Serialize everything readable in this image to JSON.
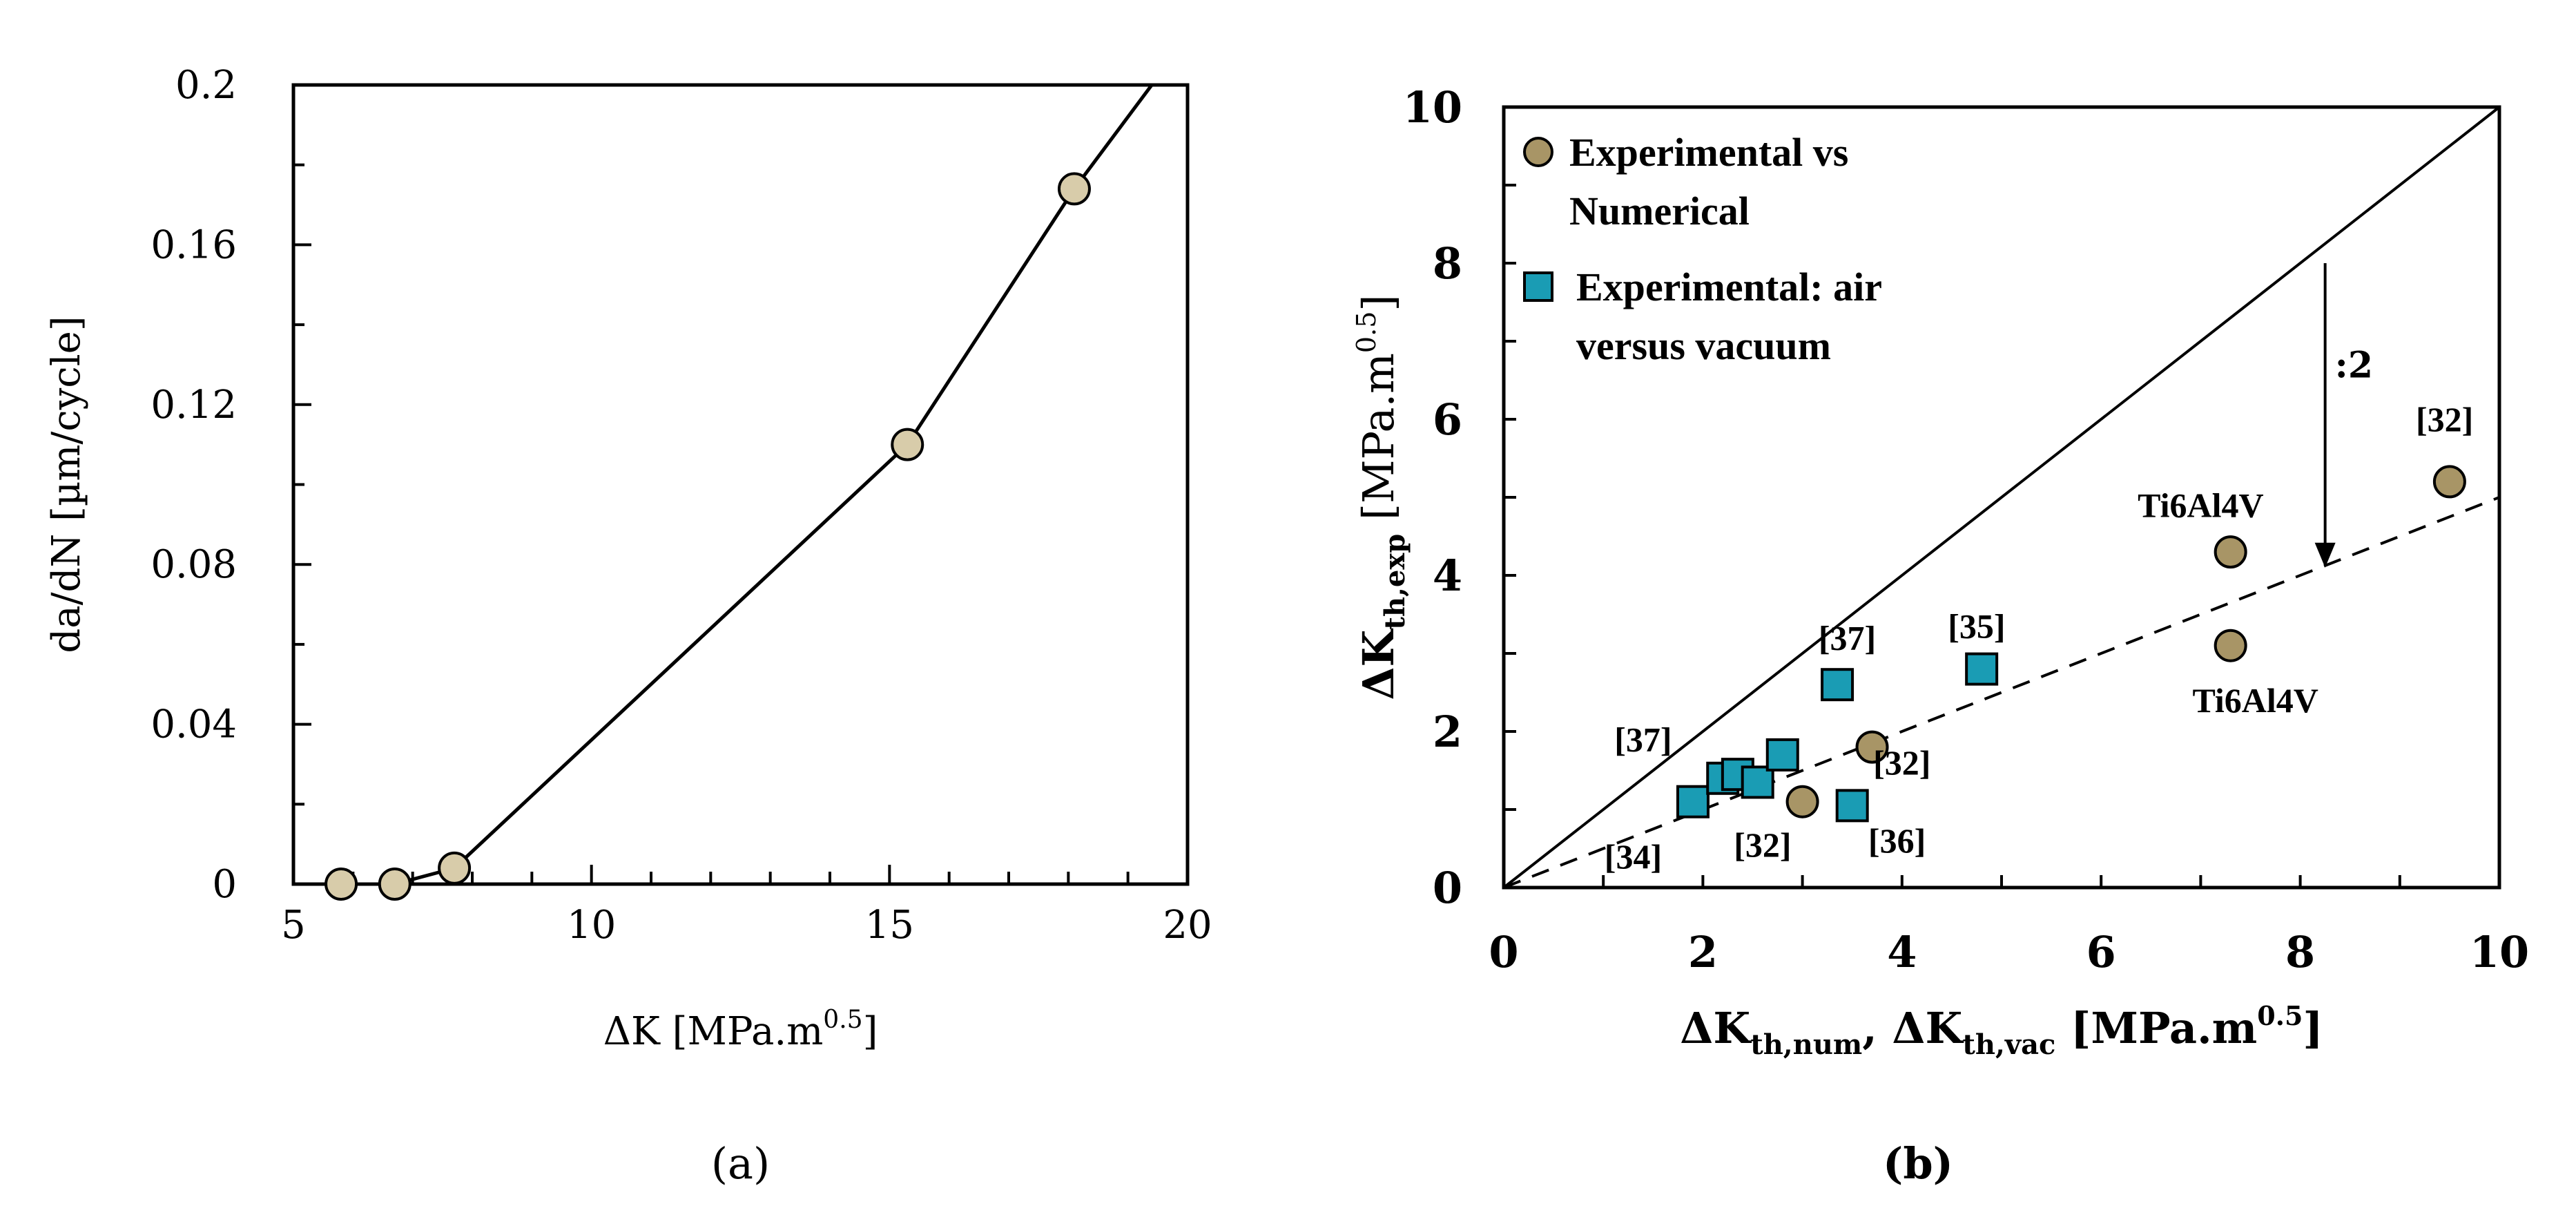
{
  "chart_data": [
    {
      "panel": "a",
      "type": "line",
      "caption": "(a)",
      "xlabel": {
        "prefix": "ΔK [MPa.m",
        "sup": "0.5",
        "suffix": "]"
      },
      "ylabel": "da/dN [µm/cycle]",
      "xlim": [
        5,
        20
      ],
      "ylim": [
        0,
        0.2
      ],
      "xticks": [
        "5",
        "10",
        "15",
        "20"
      ],
      "yticks": [
        "0",
        "0.04",
        "0.08",
        "0.12",
        "0.16",
        "0.2"
      ],
      "series": [
        {
          "name": "da/dN",
          "x": [
            5.8,
            6.7,
            7.7,
            15.3,
            18.1
          ],
          "y": [
            0.0,
            0.0,
            0.004,
            0.11,
            0.174
          ]
        }
      ],
      "line_end": {
        "x": 19.4,
        "y": 0.2
      },
      "colors": {
        "marker": "#d8ccaa"
      }
    },
    {
      "panel": "b",
      "type": "scatter",
      "caption": "(b)",
      "xlabel": {
        "delta": "ΔK",
        "sub1": "th,num",
        "sep": ", ΔK",
        "sub2": "th,vac",
        "tail": " [MPa.m",
        "sup": "0.5",
        "end": "]"
      },
      "ylabel": {
        "delta": "ΔK",
        "sub": "th,exp",
        "tail": " [MPa.m",
        "sup": "0.5",
        "end": "]"
      },
      "xlim": [
        0,
        10
      ],
      "ylim": [
        0,
        10
      ],
      "xticks": [
        "0",
        "2",
        "4",
        "6",
        "8",
        "10"
      ],
      "yticks": [
        "0",
        "2",
        "4",
        "6",
        "8",
        "10"
      ],
      "legend": [
        {
          "marker": "circle",
          "lines": [
            "Experimental vs",
            "Numerical"
          ]
        },
        {
          "marker": "square",
          "lines": [
            "Experimental: air",
            "versus vacuum"
          ]
        }
      ],
      "series": [
        {
          "name": "Experimental vs Numerical",
          "marker": "circle",
          "x": [
            3.0,
            3.7,
            7.3,
            7.3,
            9.5
          ],
          "y": [
            1.1,
            1.8,
            4.3,
            3.1,
            5.2
          ]
        },
        {
          "name": "Experimental: air versus vacuum",
          "marker": "square",
          "x": [
            1.9,
            2.2,
            2.35,
            2.55,
            2.8,
            3.35,
            3.5,
            4.8
          ],
          "y": [
            1.1,
            1.4,
            1.45,
            1.35,
            1.7,
            2.6,
            1.05,
            2.8
          ]
        }
      ],
      "reference_lines": [
        {
          "name": "1:1",
          "x": [
            0,
            10
          ],
          "y": [
            0,
            10
          ],
          "style": "solid"
        },
        {
          "name": "1:2",
          "x": [
            0,
            10
          ],
          "y": [
            0,
            5
          ],
          "style": "dashed"
        }
      ],
      "arrow": {
        "label": ":2",
        "x": 8.25,
        "y_from": 8.0,
        "y_to": 4.1
      },
      "annotations": [
        {
          "text": "[32]",
          "x": 9.45,
          "y": 5.85
        },
        {
          "text": "Ti6Al4V",
          "x": 7.0,
          "y": 4.75
        },
        {
          "text": "Ti6Al4V",
          "x": 7.55,
          "y": 2.25
        },
        {
          "text": "[37]",
          "x": 3.45,
          "y": 3.05
        },
        {
          "text": "[35]",
          "x": 4.75,
          "y": 3.2
        },
        {
          "text": "[37]",
          "x": 1.4,
          "y": 1.75
        },
        {
          "text": "[32]",
          "x": 4.0,
          "y": 1.45
        },
        {
          "text": "[34]",
          "x": 1.3,
          "y": 0.25
        },
        {
          "text": "[32]",
          "x": 2.6,
          "y": 0.4
        },
        {
          "text": "[36]",
          "x": 3.95,
          "y": 0.45
        }
      ],
      "colors": {
        "circle": "#a89566",
        "square": "#1a9cb4"
      }
    }
  ]
}
